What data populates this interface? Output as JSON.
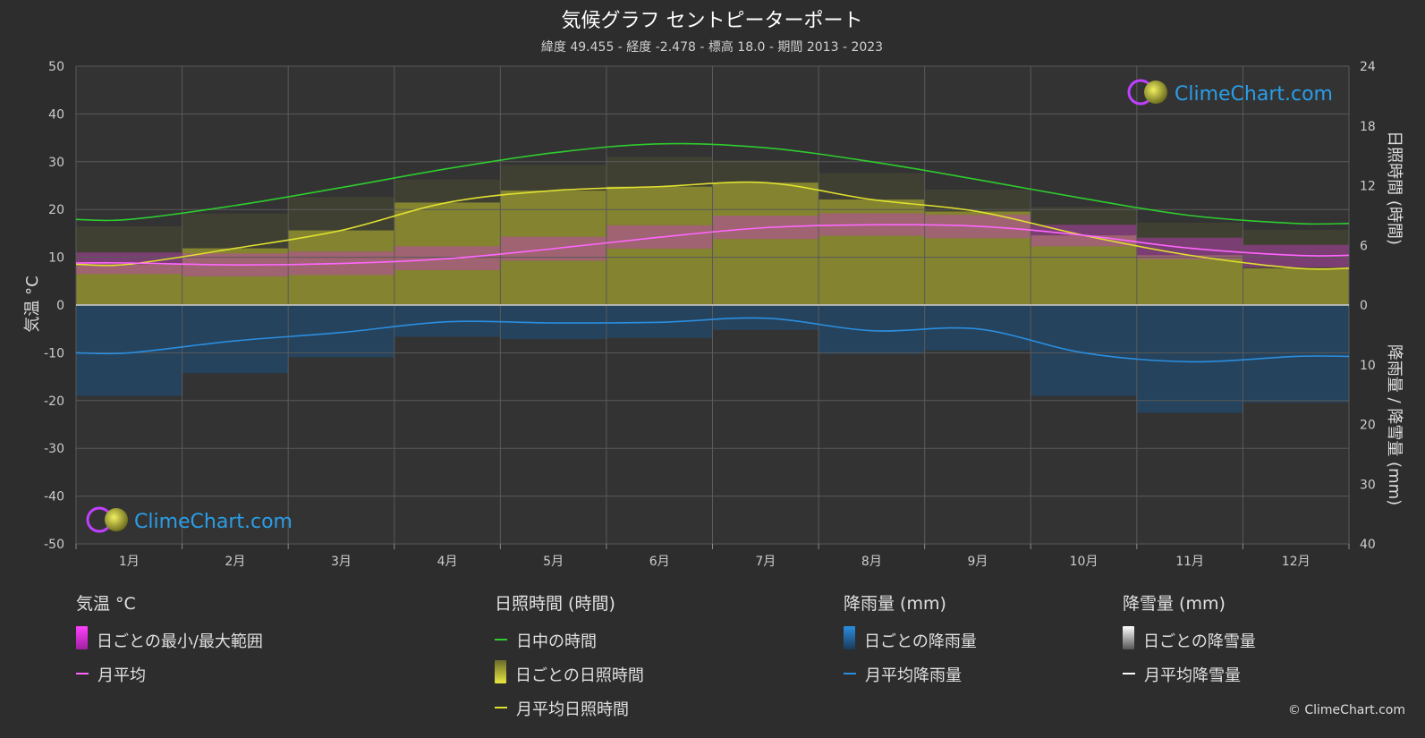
{
  "title": "気候グラフ セントピーターポート",
  "subtitle": "緯度 49.455 - 経度 -2.478 - 標高 18.0 - 期間 2013 - 2023",
  "logo_text": "ClimeChart.com",
  "copyright": "© ClimeChart.com",
  "colors": {
    "background": "#2d2d2d",
    "daylight": "#2ecc2e",
    "sunshine_line": "#e0e030",
    "sunshine_bar": "#9a9a30",
    "temp_line": "#ff66ff",
    "temp_range": "#c03cc0",
    "rain_line": "#2a8ee0",
    "rain_bar": "#1d4f7a",
    "snow_line": "#ffffff"
  },
  "chart_data": {
    "type": "line",
    "months": [
      "1月",
      "2月",
      "3月",
      "4月",
      "5月",
      "6月",
      "7月",
      "8月",
      "9月",
      "10月",
      "11月",
      "12月"
    ],
    "left_axis": {
      "label": "気温 °C",
      "range": [
        -50,
        50
      ],
      "ticks": [
        "50",
        "40",
        "30",
        "20",
        "10",
        "0",
        "-10",
        "-20",
        "-30",
        "-40",
        "-50"
      ]
    },
    "right_axis_top": {
      "label": "日照時間 (時間)",
      "range": [
        0,
        24
      ],
      "ticks": [
        "24",
        "18",
        "12",
        "6",
        "0"
      ]
    },
    "right_axis_bottom": {
      "label": "降雨量 / 降雪量 (mm)",
      "range": [
        0,
        40
      ],
      "ticks": [
        "10",
        "20",
        "30",
        "40"
      ]
    },
    "series": [
      {
        "name": "日中の時間",
        "unit": "h",
        "values": [
          8.6,
          10.0,
          11.8,
          13.7,
          15.3,
          16.2,
          15.8,
          14.4,
          12.6,
          10.7,
          9.0,
          8.2
        ]
      },
      {
        "name": "月平均日照時間",
        "unit": "h",
        "values": [
          4.1,
          5.7,
          7.5,
          10.3,
          11.5,
          11.9,
          12.3,
          10.6,
          9.4,
          7.0,
          5.0,
          3.7
        ]
      },
      {
        "name": "月平均",
        "unit": "°C",
        "values": [
          8.8,
          8.4,
          8.7,
          9.7,
          11.8,
          14.2,
          16.2,
          16.8,
          16.5,
          14.6,
          11.9,
          10.4
        ]
      },
      {
        "name": "月平均降雨量",
        "unit": "mm",
        "values": [
          8.0,
          6.0,
          4.6,
          2.8,
          3.0,
          2.9,
          2.2,
          4.3,
          4.0,
          8.0,
          9.5,
          8.6
        ]
      },
      {
        "name": "月平均降雪量",
        "unit": "mm",
        "values": [
          0,
          0,
          0,
          0,
          0,
          0,
          0,
          0,
          0,
          0,
          0,
          0
        ]
      }
    ],
    "daily_temperature_range": {
      "min_values": [
        6.5,
        6.0,
        6.3,
        7.3,
        9.3,
        11.8,
        13.8,
        14.5,
        14.0,
        12.3,
        9.6,
        7.9
      ],
      "max_values": [
        11.0,
        10.8,
        11.2,
        12.3,
        14.3,
        16.7,
        18.7,
        19.2,
        18.9,
        16.8,
        14.1,
        12.6
      ]
    },
    "legend_placement": "bottom",
    "grid": true
  },
  "legend": {
    "temp": {
      "header": "気温 °C",
      "items": [
        "日ごとの最小/最大範囲",
        "月平均"
      ]
    },
    "sun": {
      "header": "日照時間 (時間)",
      "items": [
        "日中の時間",
        "日ごとの日照時間",
        "月平均日照時間"
      ]
    },
    "rain": {
      "header": "降雨量 (mm)",
      "items": [
        "日ごとの降雨量",
        "月平均降雨量"
      ]
    },
    "snow": {
      "header": "降雪量 (mm)",
      "items": [
        "日ごとの降雪量",
        "月平均降雪量"
      ]
    }
  }
}
